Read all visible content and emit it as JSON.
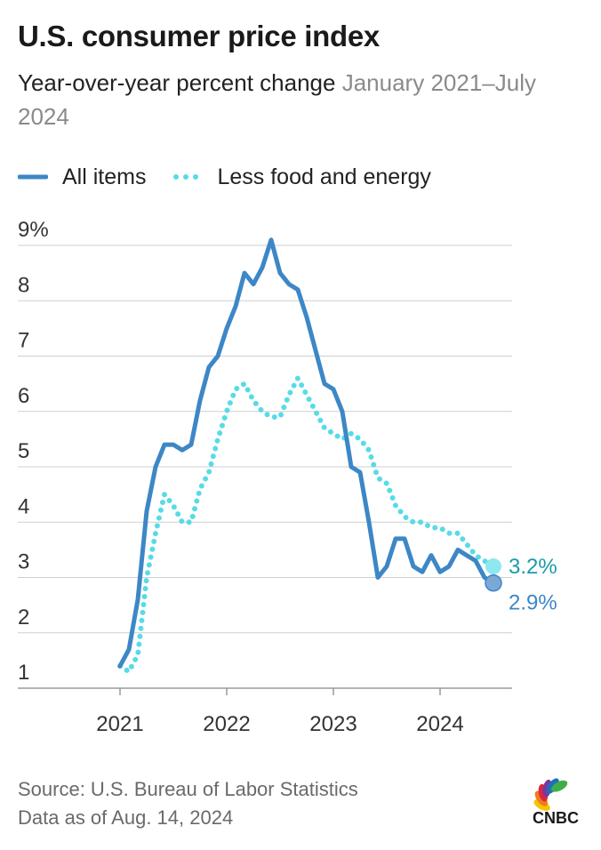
{
  "title": "U.S. consumer price index",
  "subtitle": "Year-over-year percent change",
  "subtitle_range": "January 2021–July 2024",
  "legend": [
    {
      "label": "All items",
      "color": "#3d87c6",
      "style": "solid"
    },
    {
      "label": "Less food and energy",
      "color": "#57dbe6",
      "style": "dotted"
    }
  ],
  "footer": {
    "source": "Source: U.S. Bureau of Labor Statistics",
    "date": "Data as of Aug. 14, 2024"
  },
  "logo": {
    "text": "CNBC",
    "icon": "nbc-peacock-icon"
  },
  "chart_data": {
    "type": "line",
    "title": "U.S. consumer price index",
    "subtitle": "Year-over-year percent change January 2021–July 2024",
    "xlabel": "",
    "ylabel": "",
    "ylim": [
      1,
      9
    ],
    "y_ticks": [
      "9%",
      "8",
      "7",
      "6",
      "5",
      "4",
      "3",
      "2",
      "1"
    ],
    "x_ticks": [
      "2021",
      "2022",
      "2023",
      "2024"
    ],
    "grid": true,
    "legend_position": "top-left",
    "x": [
      "2021-01",
      "2021-02",
      "2021-03",
      "2021-04",
      "2021-05",
      "2021-06",
      "2021-07",
      "2021-08",
      "2021-09",
      "2021-10",
      "2021-11",
      "2021-12",
      "2022-01",
      "2022-02",
      "2022-03",
      "2022-04",
      "2022-05",
      "2022-06",
      "2022-07",
      "2022-08",
      "2022-09",
      "2022-10",
      "2022-11",
      "2022-12",
      "2023-01",
      "2023-02",
      "2023-03",
      "2023-04",
      "2023-05",
      "2023-06",
      "2023-07",
      "2023-08",
      "2023-09",
      "2023-10",
      "2023-11",
      "2023-12",
      "2024-01",
      "2024-02",
      "2024-03",
      "2024-04",
      "2024-05",
      "2024-06",
      "2024-07"
    ],
    "series": [
      {
        "name": "All items",
        "color": "#3d87c6",
        "style": "solid",
        "values": [
          1.4,
          1.7,
          2.6,
          4.2,
          5.0,
          5.4,
          5.4,
          5.3,
          5.4,
          6.2,
          6.8,
          7.0,
          7.5,
          7.9,
          8.5,
          8.3,
          8.6,
          9.1,
          8.5,
          8.3,
          8.2,
          7.7,
          7.1,
          6.5,
          6.4,
          6.0,
          5.0,
          4.9,
          4.0,
          3.0,
          3.2,
          3.7,
          3.7,
          3.2,
          3.1,
          3.4,
          3.1,
          3.2,
          3.5,
          3.4,
          3.3,
          3.0,
          2.9
        ]
      },
      {
        "name": "Less food and energy",
        "color": "#57dbe6",
        "style": "dotted",
        "values": [
          1.4,
          1.3,
          1.6,
          3.0,
          3.8,
          4.5,
          4.3,
          4.0,
          4.0,
          4.6,
          4.9,
          5.5,
          6.0,
          6.4,
          6.5,
          6.2,
          6.0,
          5.9,
          5.9,
          6.3,
          6.6,
          6.3,
          6.0,
          5.7,
          5.6,
          5.5,
          5.6,
          5.5,
          5.3,
          4.8,
          4.7,
          4.3,
          4.1,
          4.0,
          4.0,
          3.9,
          3.9,
          3.8,
          3.8,
          3.6,
          3.4,
          3.3,
          3.2
        ]
      }
    ],
    "end_labels": [
      {
        "series": "Less food and energy",
        "text": "3.2%",
        "color": "#1a9aa8"
      },
      {
        "series": "All items",
        "text": "2.9%",
        "color": "#3d87c6"
      }
    ]
  }
}
